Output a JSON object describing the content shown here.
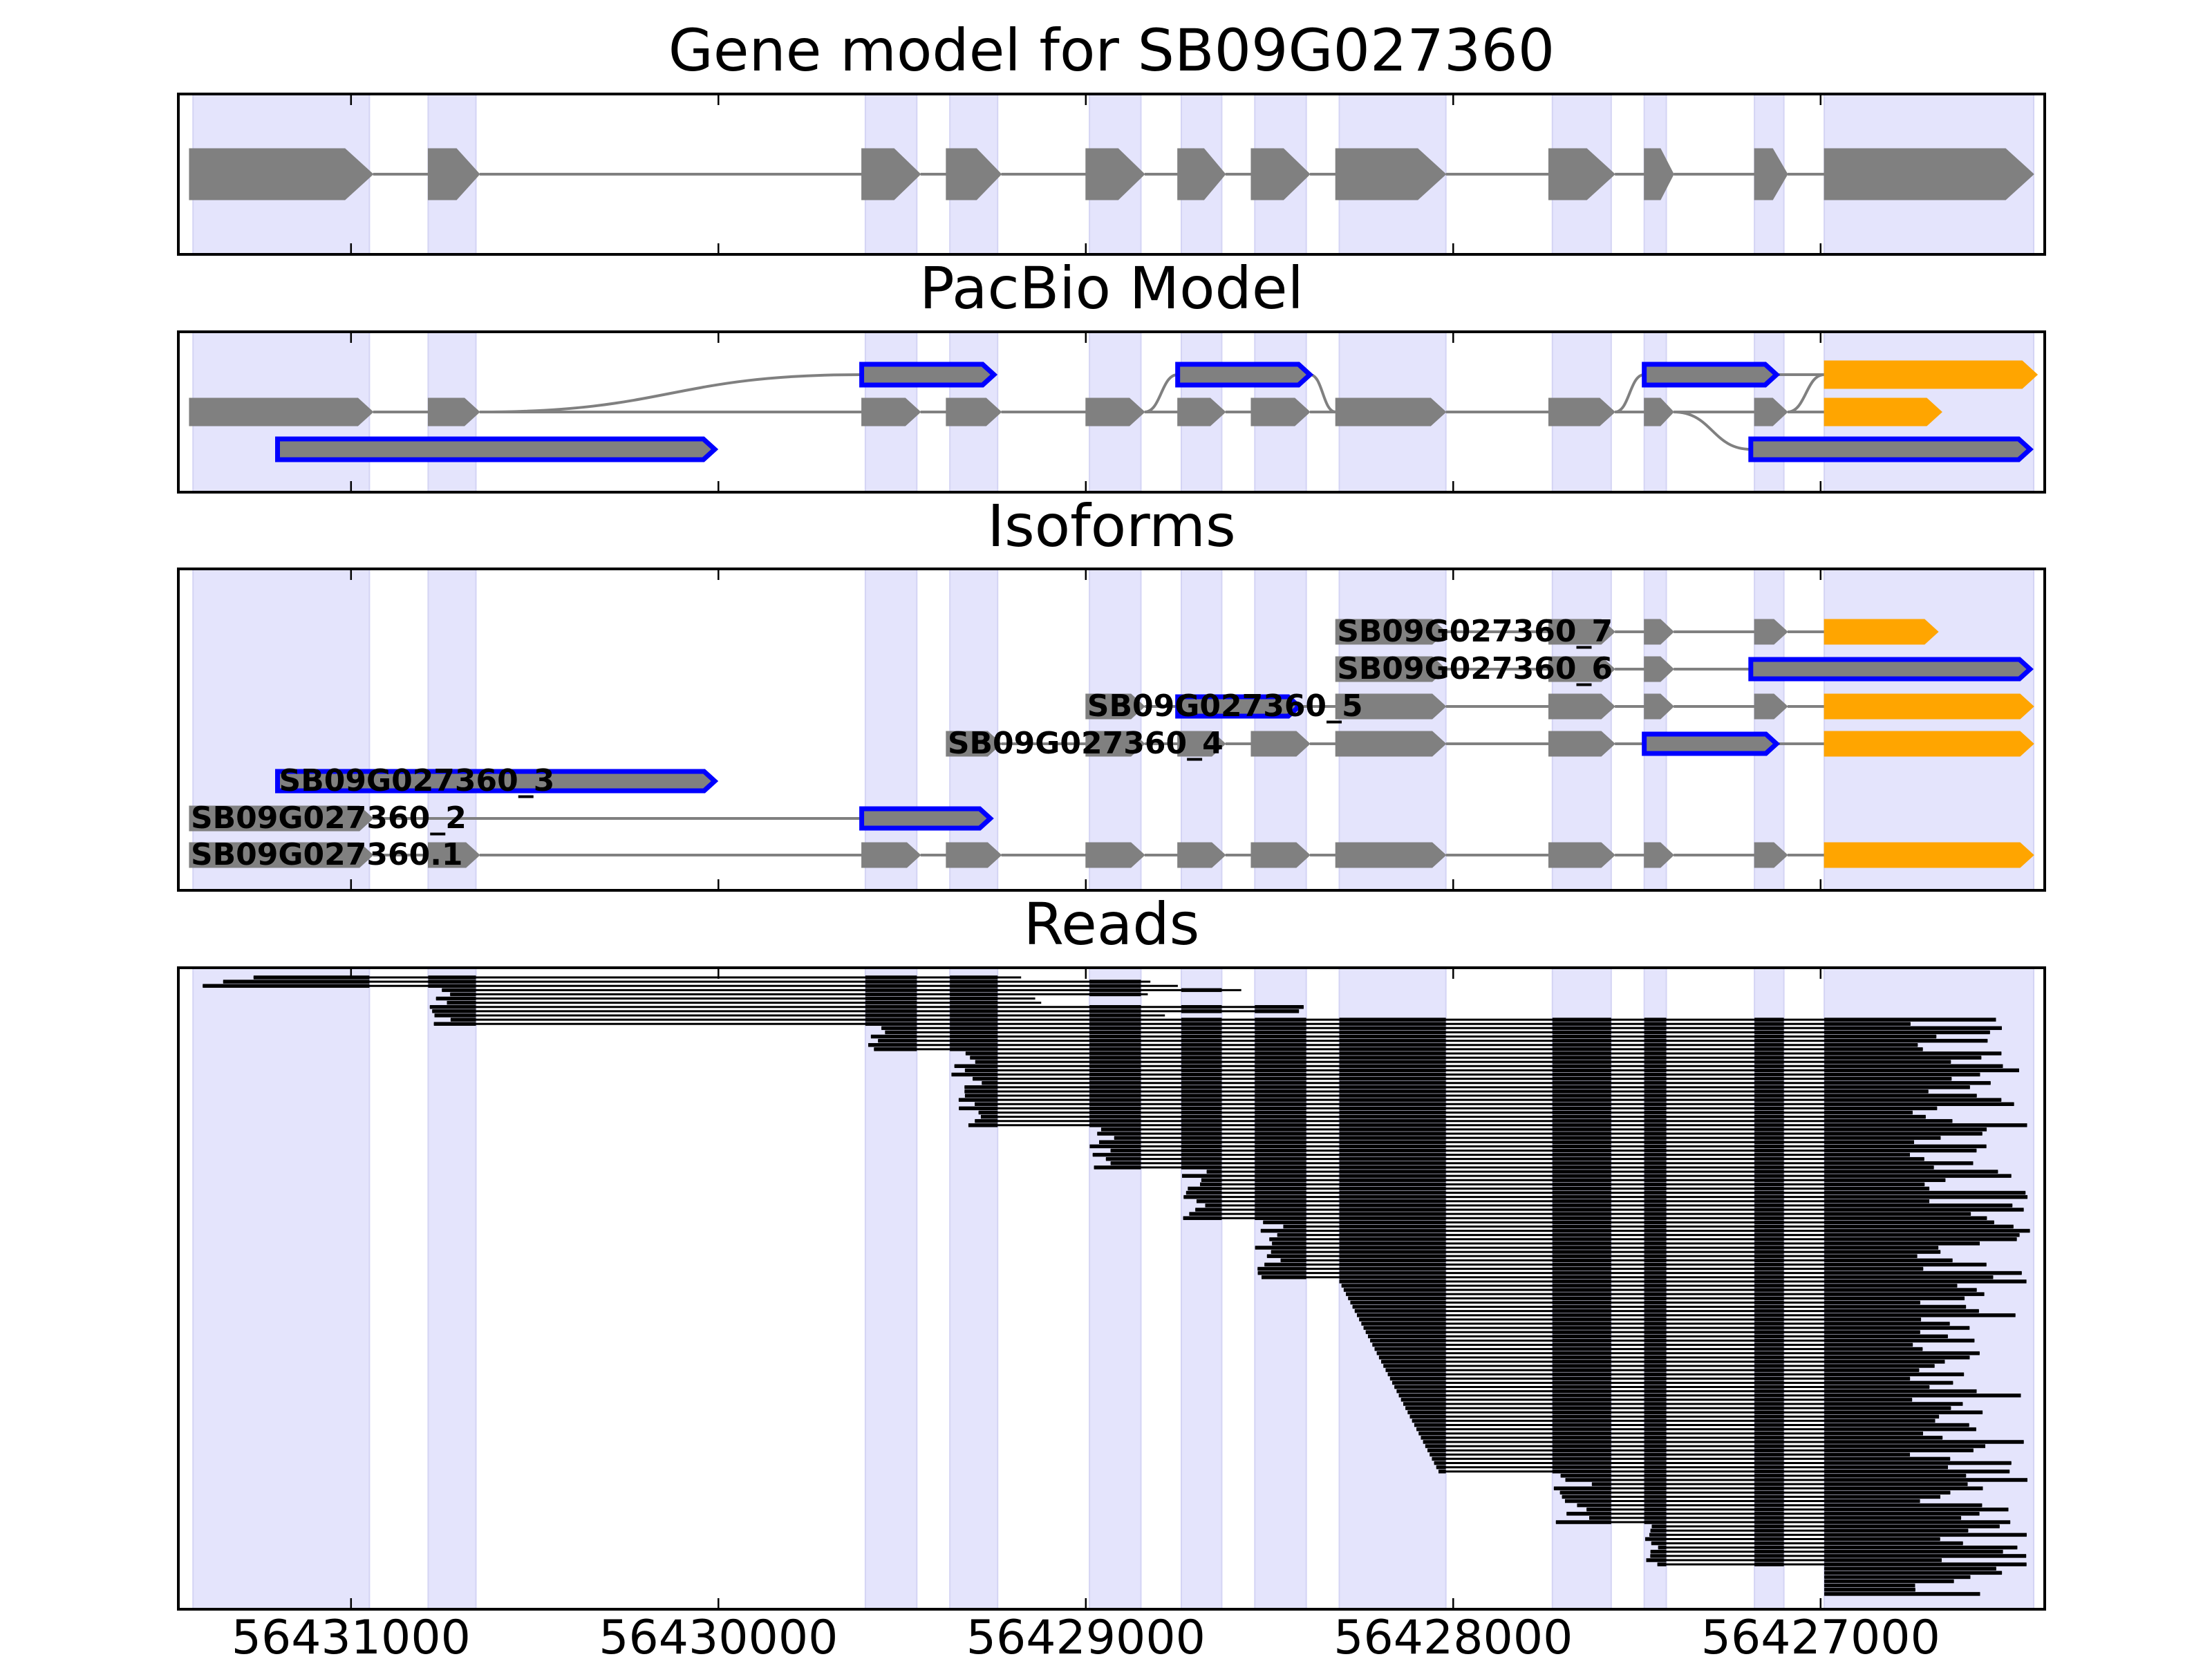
{
  "chart_data": [
    {
      "type": "gene_model",
      "title": "Gene model for SB09G027360",
      "strand": "-",
      "exons": [
        {
          "start": 56431440,
          "end": 56430940,
          "color": "#808080"
        },
        {
          "start": 56430790,
          "end": 56430650,
          "color": "#808080"
        },
        {
          "start": 56429610,
          "end": 56429450,
          "color": "#808080"
        },
        {
          "start": 56429380,
          "end": 56429230,
          "color": "#808080"
        },
        {
          "start": 56429000,
          "end": 56428840,
          "color": "#808080"
        },
        {
          "start": 56428750,
          "end": 56428620,
          "color": "#808080"
        },
        {
          "start": 56428550,
          "end": 56428390,
          "color": "#808080"
        },
        {
          "start": 56428320,
          "end": 56428020,
          "color": "#808080"
        },
        {
          "start": 56427740,
          "end": 56427560,
          "color": "#808080"
        },
        {
          "start": 56427480,
          "end": 56427400,
          "color": "#808080"
        },
        {
          "start": 56427180,
          "end": 56427090,
          "color": "#808080"
        },
        {
          "start": 56426990,
          "end": 56426420,
          "color": "#808080"
        }
      ]
    },
    {
      "type": "splice_graph",
      "title": "PacBio Model",
      "nodes": [
        {
          "start": 56431440,
          "end": 56430940,
          "row": 1,
          "color": "#808080"
        },
        {
          "start": 56430790,
          "end": 56430650,
          "row": 1,
          "color": "#808080"
        },
        {
          "start": 56431200,
          "end": 56430010,
          "row": 2,
          "color": "#808080",
          "outline": "#0000ff"
        },
        {
          "start": 56429610,
          "end": 56429450,
          "row": 1,
          "color": "#808080"
        },
        {
          "start": 56429610,
          "end": 56429250,
          "row": 0,
          "color": "#808080",
          "outline": "#0000ff"
        },
        {
          "start": 56429380,
          "end": 56429230,
          "row": 1,
          "color": "#808080"
        },
        {
          "start": 56429000,
          "end": 56428840,
          "row": 1,
          "color": "#808080"
        },
        {
          "start": 56428750,
          "end": 56428620,
          "row": 1,
          "color": "#808080"
        },
        {
          "start": 56428750,
          "end": 56428390,
          "row": 0,
          "color": "#808080",
          "outline": "#0000ff"
        },
        {
          "start": 56428550,
          "end": 56428390,
          "row": 1,
          "color": "#808080"
        },
        {
          "start": 56428320,
          "end": 56428020,
          "row": 1,
          "color": "#808080"
        },
        {
          "start": 56427740,
          "end": 56427560,
          "row": 1,
          "color": "#808080"
        },
        {
          "start": 56427480,
          "end": 56427400,
          "row": 1,
          "color": "#808080"
        },
        {
          "start": 56427480,
          "end": 56427120,
          "row": 0,
          "color": "#808080",
          "outline": "#0000ff"
        },
        {
          "start": 56427180,
          "end": 56427090,
          "row": 1,
          "color": "#808080"
        },
        {
          "start": 56427190,
          "end": 56426430,
          "row": 2,
          "color": "#808080",
          "outline": "#0000ff"
        },
        {
          "start": 56426990,
          "end": 56426410,
          "row": 0,
          "color": "#ffa500"
        },
        {
          "start": 56426990,
          "end": 56426670,
          "row": 1,
          "color": "#ffa500"
        }
      ],
      "edges": [
        {
          "from": 56430940,
          "to": 56430790,
          "from_row": 1,
          "to_row": 1
        },
        {
          "from": 56430650,
          "to": 56429610,
          "from_row": 1,
          "to_row": 1
        },
        {
          "from": 56430650,
          "to": 56429610,
          "from_row": 1,
          "to_row": 0
        },
        {
          "from": 56429450,
          "to": 56429380,
          "from_row": 1,
          "to_row": 1
        },
        {
          "from": 56429230,
          "to": 56429000,
          "from_row": 1,
          "to_row": 1
        },
        {
          "from": 56428840,
          "to": 56428750,
          "from_row": 1,
          "to_row": 1
        },
        {
          "from": 56428840,
          "to": 56428750,
          "from_row": 1,
          "to_row": 0
        },
        {
          "from": 56428620,
          "to": 56428550,
          "from_row": 1,
          "to_row": 1
        },
        {
          "from": 56428390,
          "to": 56428320,
          "from_row": 1,
          "to_row": 1
        },
        {
          "from": 56428390,
          "to": 56428320,
          "from_row": 0,
          "to_row": 1
        },
        {
          "from": 56428020,
          "to": 56427740,
          "from_row": 1,
          "to_row": 1
        },
        {
          "from": 56427560,
          "to": 56427480,
          "from_row": 1,
          "to_row": 1
        },
        {
          "from": 56427560,
          "to": 56427480,
          "from_row": 1,
          "to_row": 0
        },
        {
          "from": 56427400,
          "to": 56427180,
          "from_row": 1,
          "to_row": 1
        },
        {
          "from": 56427400,
          "to": 56427190,
          "from_row": 1,
          "to_row": 2
        },
        {
          "from": 56427120,
          "to": 56426990,
          "from_row": 0,
          "to_row": 0
        },
        {
          "from": 56427090,
          "to": 56426990,
          "from_row": 1,
          "to_row": 0
        },
        {
          "from": 56427090,
          "to": 56426990,
          "from_row": 1,
          "to_row": 1
        }
      ]
    },
    {
      "type": "isoforms",
      "title": "Isoforms",
      "isoforms": [
        {
          "name": "SB09G027360.1",
          "exons": [
            {
              "start": 56431440,
              "end": 56430940,
              "color": "#808080"
            },
            {
              "start": 56430790,
              "end": 56430650,
              "color": "#808080"
            },
            {
              "start": 56429610,
              "end": 56429450,
              "color": "#808080"
            },
            {
              "start": 56429380,
              "end": 56429230,
              "color": "#808080"
            },
            {
              "start": 56429000,
              "end": 56428840,
              "color": "#808080"
            },
            {
              "start": 56428750,
              "end": 56428620,
              "color": "#808080"
            },
            {
              "start": 56428550,
              "end": 56428390,
              "color": "#808080"
            },
            {
              "start": 56428320,
              "end": 56428020,
              "color": "#808080"
            },
            {
              "start": 56427740,
              "end": 56427560,
              "color": "#808080"
            },
            {
              "start": 56427480,
              "end": 56427400,
              "color": "#808080"
            },
            {
              "start": 56427180,
              "end": 56427090,
              "color": "#808080"
            },
            {
              "start": 56426990,
              "end": 56426420,
              "color": "#ffa500"
            }
          ]
        },
        {
          "name": "SB09G027360_2",
          "exons": [
            {
              "start": 56431440,
              "end": 56430940,
              "color": "#808080"
            },
            {
              "start": 56429610,
              "end": 56429260,
              "color": "#808080",
              "outline": "#0000ff"
            }
          ]
        },
        {
          "name": "SB09G027360_3",
          "exons": [
            {
              "start": 56431200,
              "end": 56430010,
              "color": "#808080",
              "outline": "#0000ff"
            }
          ]
        },
        {
          "name": "SB09G027360_4",
          "exons": [
            {
              "start": 56429380,
              "end": 56429230,
              "color": "#808080"
            },
            {
              "start": 56429000,
              "end": 56428840,
              "color": "#808080"
            },
            {
              "start": 56428750,
              "end": 56428620,
              "color": "#808080"
            },
            {
              "start": 56428550,
              "end": 56428390,
              "color": "#808080"
            },
            {
              "start": 56428320,
              "end": 56428020,
              "color": "#808080"
            },
            {
              "start": 56427740,
              "end": 56427560,
              "color": "#808080"
            },
            {
              "start": 56427480,
              "end": 56427120,
              "color": "#808080",
              "outline": "#0000ff"
            },
            {
              "start": 56426990,
              "end": 56426420,
              "color": "#ffa500"
            }
          ]
        },
        {
          "name": "SB09G027360_5",
          "exons": [
            {
              "start": 56429000,
              "end": 56428840,
              "color": "#808080"
            },
            {
              "start": 56428750,
              "end": 56428420,
              "color": "#808080",
              "outline": "#0000ff"
            },
            {
              "start": 56428320,
              "end": 56428020,
              "color": "#808080"
            },
            {
              "start": 56427740,
              "end": 56427560,
              "color": "#808080"
            },
            {
              "start": 56427480,
              "end": 56427400,
              "color": "#808080"
            },
            {
              "start": 56427180,
              "end": 56427090,
              "color": "#808080"
            },
            {
              "start": 56426990,
              "end": 56426420,
              "color": "#ffa500"
            }
          ]
        },
        {
          "name": "SB09G027360_6",
          "exons": [
            {
              "start": 56428320,
              "end": 56428020,
              "color": "#808080"
            },
            {
              "start": 56427740,
              "end": 56427560,
              "color": "#808080"
            },
            {
              "start": 56427480,
              "end": 56427400,
              "color": "#808080"
            },
            {
              "start": 56427190,
              "end": 56426430,
              "color": "#808080",
              "outline": "#0000ff"
            }
          ]
        },
        {
          "name": "SB09G027360_7",
          "exons": [
            {
              "start": 56428320,
              "end": 56428020,
              "color": "#808080"
            },
            {
              "start": 56427740,
              "end": 56427560,
              "color": "#808080"
            },
            {
              "start": 56427480,
              "end": 56427400,
              "color": "#808080"
            },
            {
              "start": 56427180,
              "end": 56427090,
              "color": "#808080"
            },
            {
              "start": 56426990,
              "end": 56426680,
              "color": "#ffa500"
            }
          ]
        }
      ]
    },
    {
      "type": "reads",
      "title": "Reads",
      "read_count": 147,
      "color": "#000000",
      "xlabel_ticks": [
        56431000,
        56430000,
        56429000,
        56428000,
        56427000
      ],
      "xlim": [
        56431470,
        56426390
      ]
    }
  ],
  "exon_regions": [
    [
      56431430,
      56430950
    ],
    [
      56430790,
      56430660
    ],
    [
      56429600,
      56429460
    ],
    [
      56429370,
      56429240
    ],
    [
      56428990,
      56428850
    ],
    [
      56428740,
      56428630
    ],
    [
      56428540,
      56428400
    ],
    [
      56428310,
      56428020
    ],
    [
      56427730,
      56427570
    ],
    [
      56427480,
      56427420
    ],
    [
      56427180,
      56427100
    ],
    [
      56426990,
      56426420
    ]
  ],
  "colors": {
    "exon": "#808080",
    "utr": "#ffa500",
    "novel_outline": "#0000ff",
    "highlight": "#e4e4fc",
    "intron": "#808080"
  }
}
